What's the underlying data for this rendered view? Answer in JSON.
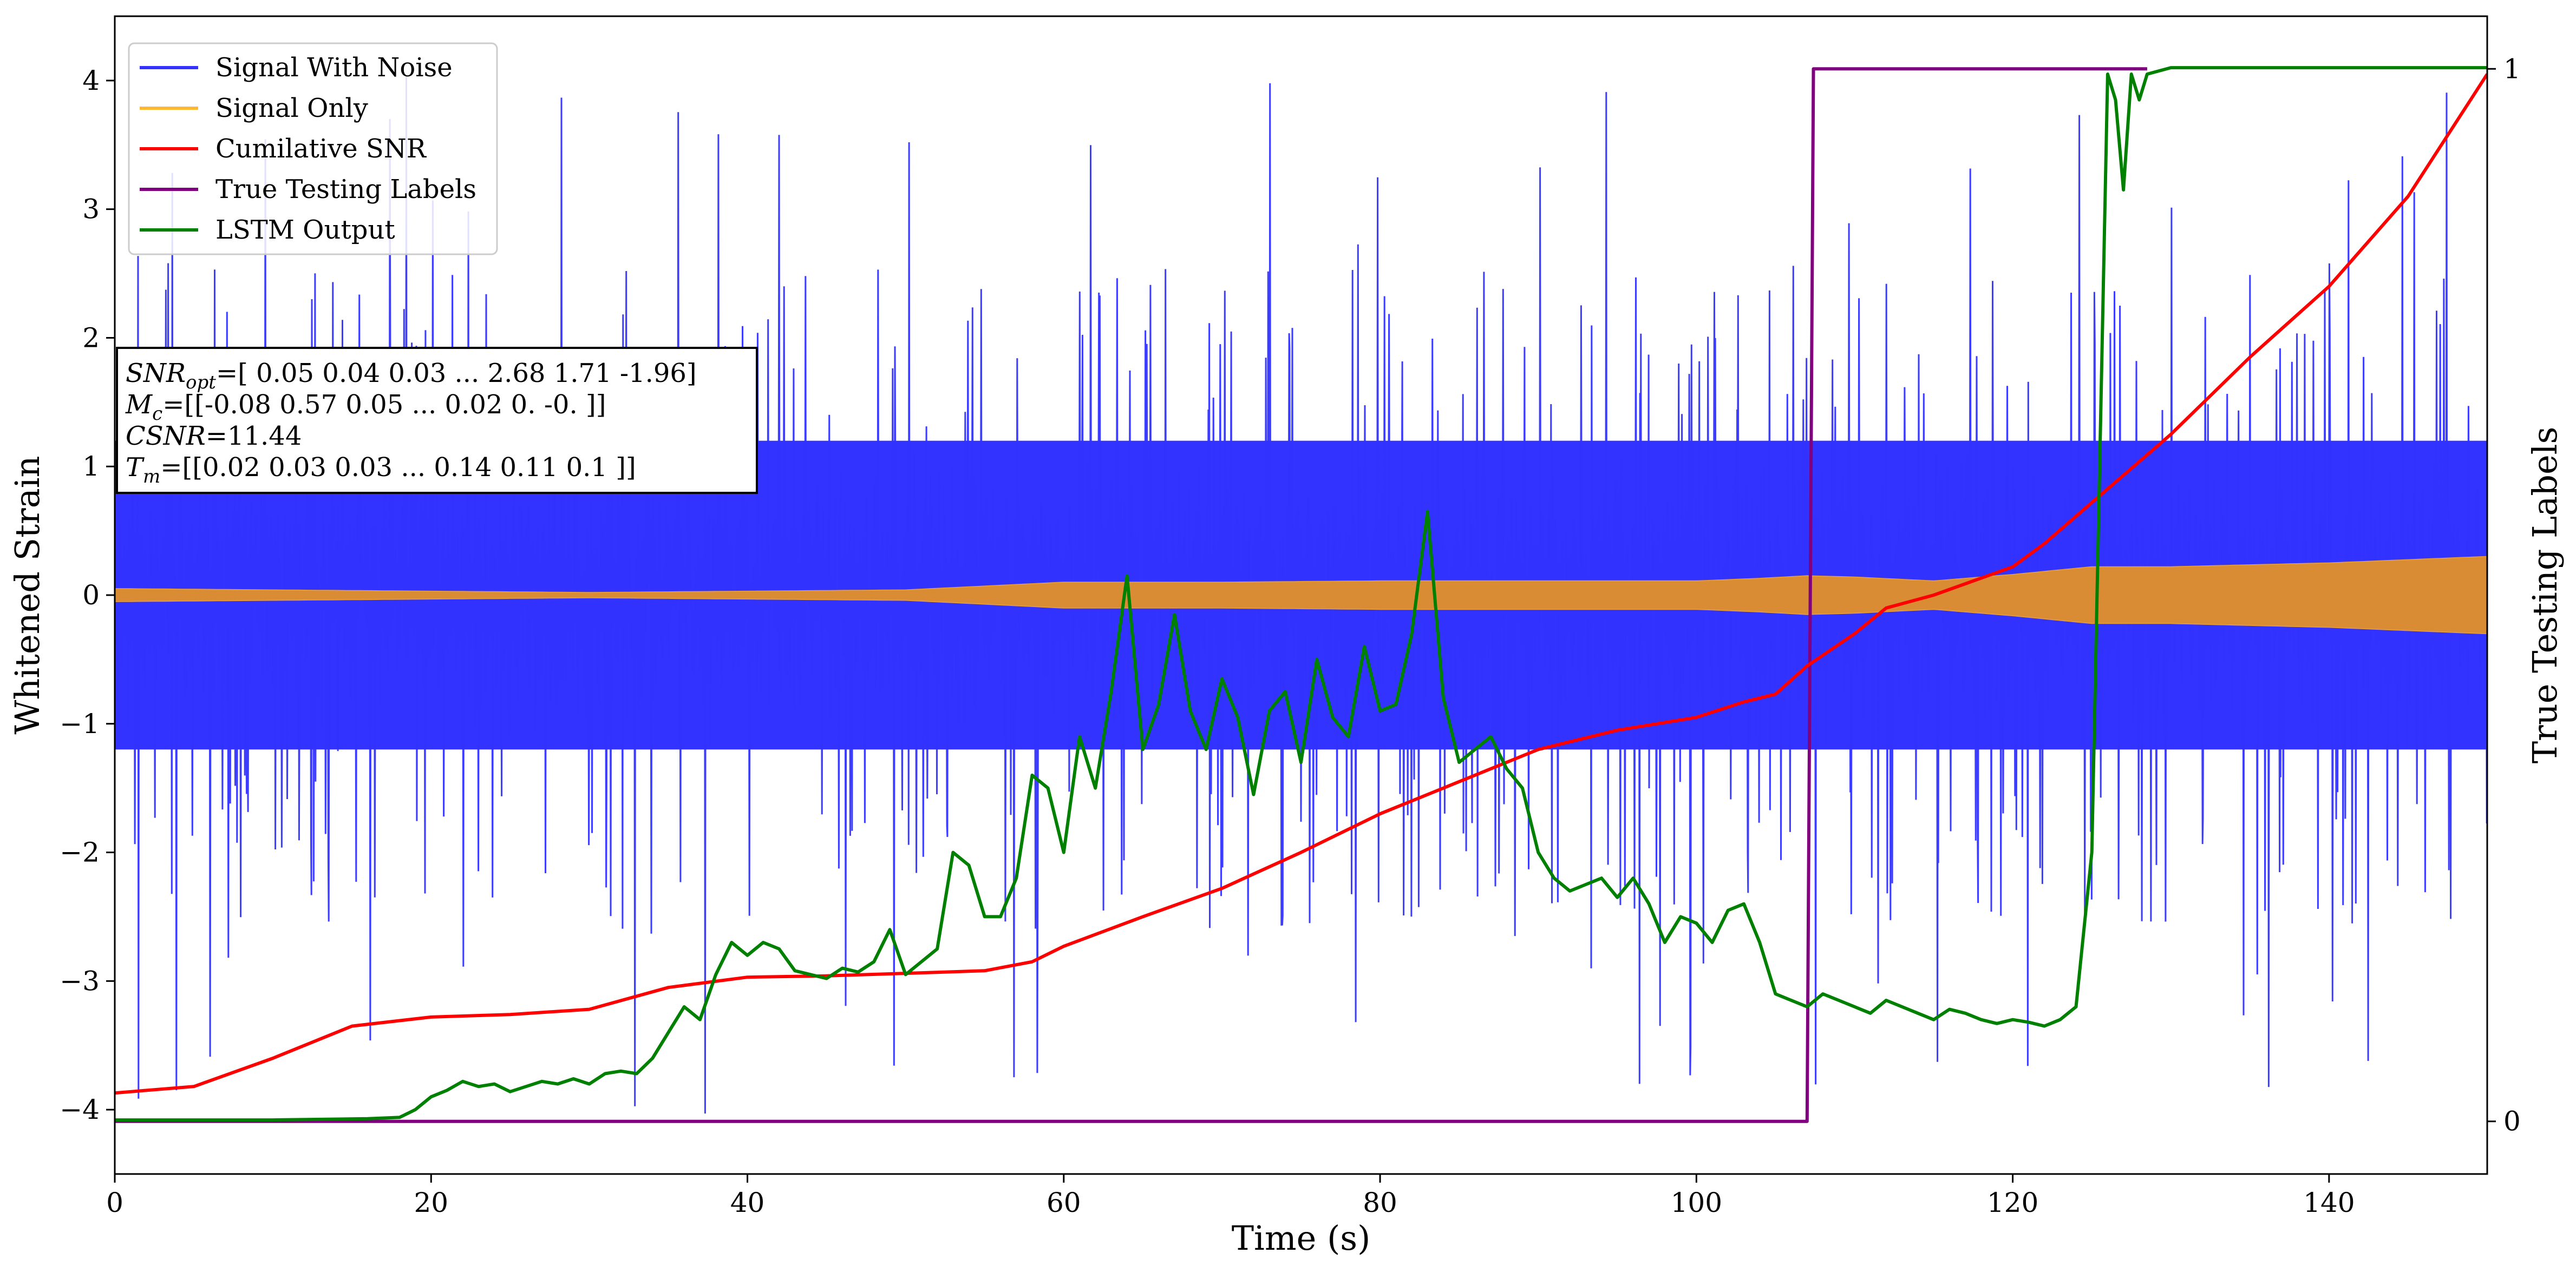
{
  "chart_data": {
    "type": "line",
    "title": "",
    "xlabel": "Time (s)",
    "ylabel": "Whitened Strain",
    "ylabel_right": "True Testing Labels",
    "xlim": [
      0,
      150
    ],
    "ylim": [
      -4.5,
      4.5
    ],
    "ylim_right": [
      -0.05,
      1.05
    ],
    "x_ticks": [
      0,
      20,
      40,
      60,
      80,
      100,
      120,
      140
    ],
    "y_ticks": [
      -4,
      -3,
      -2,
      -1,
      0,
      1,
      2,
      3,
      4
    ],
    "y_ticks_right": [
      0,
      1
    ],
    "grid": false,
    "legend_position": "top-left",
    "legend": [
      {
        "name": "Signal With Noise",
        "color": "#3333ff"
      },
      {
        "name": "Signal Only",
        "color": "#ffb833"
      },
      {
        "name": "Cumilative SNR",
        "color": "#ff0000"
      },
      {
        "name": "True Testing Labels",
        "color": "#800080"
      },
      {
        "name": "LSTM Output",
        "color": "#008000"
      }
    ],
    "annotation": {
      "lines": [
        {
          "symbol": "SNR",
          "sub": "opt",
          "text": "=[ 0.05  0.04  0.03 ...  2.68  1.71 -1.96]"
        },
        {
          "symbol": "M",
          "sub": "c",
          "text": "=[[-0.08  0.57  0.05 ...  0.02  0.   -0.  ]]"
        },
        {
          "symbol": "CSNR",
          "sub": "",
          "text": "=11.44"
        },
        {
          "symbol": "T",
          "sub": "m",
          "text": "=[[0.02 0.03 0.03 ... 0.14 0.11 0.1 ]]"
        }
      ]
    },
    "series": [
      {
        "name": "Signal With Noise",
        "color": "#3333ff",
        "axis": "left",
        "description": "dense noisy strain, core band about ±1.2 with spikes up to about ±4",
        "band_core": 1.2,
        "spike_max": 4.1
      },
      {
        "name": "Signal Only",
        "color": "#ffb833",
        "axis": "left",
        "x": [
          0,
          10,
          20,
          30,
          40,
          50,
          60,
          70,
          80,
          90,
          100,
          104,
          107,
          110,
          115,
          120,
          125,
          130,
          140,
          150
        ],
        "amplitude": [
          0.05,
          0.04,
          0.03,
          0.02,
          0.03,
          0.04,
          0.1,
          0.1,
          0.11,
          0.11,
          0.11,
          0.13,
          0.15,
          0.14,
          0.11,
          0.16,
          0.22,
          0.22,
          0.25,
          0.3
        ]
      },
      {
        "name": "Cumilative SNR",
        "color": "#ff0000",
        "axis": "left",
        "x": [
          0,
          5,
          10,
          15,
          20,
          25,
          30,
          35,
          40,
          45,
          50,
          55,
          58,
          60,
          65,
          70,
          75,
          80,
          85,
          90,
          95,
          100,
          103,
          105,
          107,
          110,
          112,
          115,
          120,
          122,
          125,
          130,
          135,
          140,
          145,
          150
        ],
        "values": [
          -3.87,
          -3.82,
          -3.6,
          -3.35,
          -3.28,
          -3.26,
          -3.22,
          -3.05,
          -2.97,
          -2.96,
          -2.94,
          -2.92,
          -2.85,
          -2.73,
          -2.5,
          -2.28,
          -2.0,
          -1.7,
          -1.45,
          -1.2,
          -1.05,
          -0.95,
          -0.83,
          -0.77,
          -0.55,
          -0.3,
          -0.1,
          0.0,
          0.22,
          0.4,
          0.72,
          1.25,
          1.85,
          2.4,
          3.1,
          4.05
        ]
      },
      {
        "name": "True Testing Labels",
        "color": "#800080",
        "axis": "right",
        "x": [
          0,
          107.0,
          107.4,
          128.5
        ],
        "values": [
          0,
          0,
          1,
          1
        ]
      },
      {
        "name": "LSTM Output",
        "color": "#008000",
        "axis": "left",
        "x": [
          0,
          10,
          16,
          18,
          19,
          20,
          21,
          22,
          23,
          24,
          25,
          26,
          27,
          28,
          29,
          30,
          31,
          32,
          33,
          34,
          35,
          36,
          37,
          38,
          39,
          40,
          41,
          42,
          43,
          44,
          45,
          46,
          47,
          48,
          49,
          50,
          51,
          52,
          53,
          54,
          55,
          56,
          57,
          58,
          59,
          60,
          61,
          62,
          63,
          64,
          65,
          66,
          67,
          68,
          69,
          70,
          71,
          72,
          73,
          74,
          75,
          76,
          77,
          78,
          79,
          80,
          81,
          82,
          83,
          84,
          85,
          86,
          87,
          88,
          89,
          90,
          91,
          92,
          93,
          94,
          95,
          96,
          97,
          98,
          99,
          100,
          101,
          102,
          103,
          104,
          105,
          106,
          107,
          108,
          109,
          110,
          111,
          112,
          113,
          114,
          115,
          116,
          117,
          118,
          119,
          120,
          121,
          122,
          123,
          124,
          125,
          126,
          126.5,
          127,
          127.5,
          128,
          128.5,
          130,
          135,
          140,
          145,
          150
        ],
        "values": [
          -4.08,
          -4.08,
          -4.07,
          -4.06,
          -4.0,
          -3.9,
          -3.85,
          -3.78,
          -3.82,
          -3.8,
          -3.86,
          -3.82,
          -3.78,
          -3.8,
          -3.76,
          -3.8,
          -3.72,
          -3.7,
          -3.72,
          -3.6,
          -3.4,
          -3.2,
          -3.3,
          -2.95,
          -2.7,
          -2.8,
          -2.7,
          -2.75,
          -2.92,
          -2.95,
          -2.98,
          -2.9,
          -2.93,
          -2.85,
          -2.6,
          -2.95,
          -2.85,
          -2.75,
          -2.0,
          -2.1,
          -2.5,
          -2.5,
          -2.2,
          -1.4,
          -1.5,
          -2.0,
          -1.1,
          -1.5,
          -0.75,
          0.15,
          -1.2,
          -0.85,
          -0.15,
          -0.9,
          -1.2,
          -0.65,
          -0.95,
          -1.55,
          -0.9,
          -0.75,
          -1.3,
          -0.5,
          -0.95,
          -1.1,
          -0.4,
          -0.9,
          -0.85,
          -0.3,
          0.65,
          -0.8,
          -1.3,
          -1.2,
          -1.1,
          -1.35,
          -1.5,
          -2.0,
          -2.2,
          -2.3,
          -2.25,
          -2.2,
          -2.35,
          -2.2,
          -2.4,
          -2.7,
          -2.5,
          -2.55,
          -2.7,
          -2.45,
          -2.4,
          -2.7,
          -3.1,
          -3.15,
          -3.2,
          -3.1,
          -3.15,
          -3.2,
          -3.25,
          -3.15,
          -3.2,
          -3.25,
          -3.3,
          -3.22,
          -3.25,
          -3.3,
          -3.33,
          -3.3,
          -3.32,
          -3.35,
          -3.3,
          -3.2,
          -2.0,
          4.05,
          3.85,
          3.15,
          4.05,
          3.85,
          4.05,
          4.1,
          4.1,
          4.1,
          4.1,
          4.1
        ]
      }
    ]
  }
}
